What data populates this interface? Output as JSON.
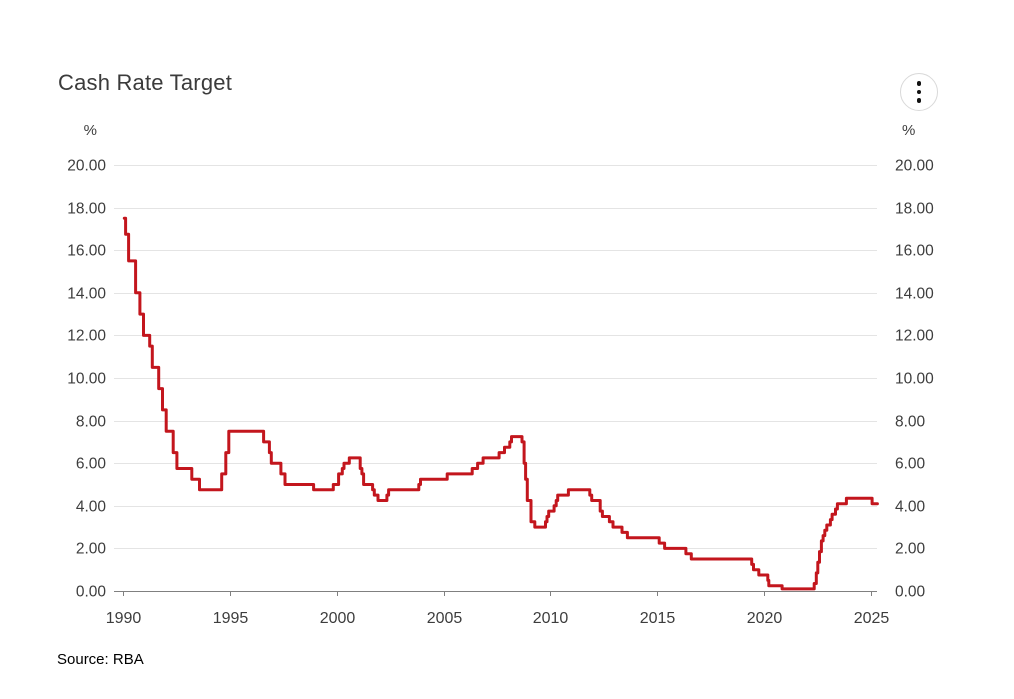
{
  "header": {
    "title": "Cash Rate Target",
    "menu_icon": "kebab-menu-icon"
  },
  "footer": {
    "source": "Source: RBA"
  },
  "chart_data": {
    "type": "line",
    "title": "Cash Rate Target",
    "line_style": "step-after",
    "color": "#c3161d",
    "grid_color": "#e4e4e4",
    "axis_color": "#808080",
    "tick_text_color": "#3d3d3d",
    "xlabel": "",
    "ylabel": "%",
    "unit_label_left": "%",
    "unit_label_right": "%",
    "xlim": [
      1990,
      2025.5
    ],
    "ylim": [
      0,
      20
    ],
    "x_ticks": [
      1990,
      1995,
      2000,
      2005,
      2010,
      2015,
      2020,
      2025
    ],
    "y_ticks": [
      0,
      2,
      4,
      6,
      8,
      10,
      12,
      14,
      16,
      18,
      20
    ],
    "y_tick_labels": [
      "0.00",
      "2.00",
      "4.00",
      "6.00",
      "8.00",
      "10.00",
      "12.00",
      "14.00",
      "16.00",
      "18.00",
      "20.00"
    ],
    "legend": "none",
    "source": "Source: RBA",
    "series": [
      {
        "name": "Cash Rate Target",
        "points": [
          [
            1990.06,
            17.5
          ],
          [
            1990.12,
            16.75
          ],
          [
            1990.26,
            15.5
          ],
          [
            1990.59,
            14.0
          ],
          [
            1990.79,
            13.0
          ],
          [
            1990.96,
            12.0
          ],
          [
            1991.25,
            11.5
          ],
          [
            1991.37,
            10.5
          ],
          [
            1991.67,
            9.5
          ],
          [
            1991.85,
            8.5
          ],
          [
            1992.02,
            7.5
          ],
          [
            1992.35,
            6.5
          ],
          [
            1992.52,
            5.75
          ],
          [
            1993.22,
            5.25
          ],
          [
            1993.58,
            4.75
          ],
          [
            1994.62,
            5.5
          ],
          [
            1994.81,
            6.5
          ],
          [
            1994.95,
            7.5
          ],
          [
            1996.58,
            7.0
          ],
          [
            1996.85,
            6.5
          ],
          [
            1996.94,
            6.0
          ],
          [
            1997.39,
            5.5
          ],
          [
            1997.58,
            5.0
          ],
          [
            1998.92,
            4.75
          ],
          [
            1999.84,
            5.0
          ],
          [
            2000.09,
            5.5
          ],
          [
            2000.26,
            5.75
          ],
          [
            2000.34,
            6.0
          ],
          [
            2000.59,
            6.25
          ],
          [
            2001.1,
            5.75
          ],
          [
            2001.18,
            5.5
          ],
          [
            2001.26,
            5.0
          ],
          [
            2001.68,
            4.75
          ],
          [
            2001.76,
            4.5
          ],
          [
            2001.93,
            4.25
          ],
          [
            2002.35,
            4.5
          ],
          [
            2002.43,
            4.75
          ],
          [
            2003.84,
            5.0
          ],
          [
            2003.92,
            5.25
          ],
          [
            2005.17,
            5.5
          ],
          [
            2006.34,
            5.75
          ],
          [
            2006.59,
            6.0
          ],
          [
            2006.85,
            6.25
          ],
          [
            2007.6,
            6.5
          ],
          [
            2007.85,
            6.75
          ],
          [
            2008.1,
            7.0
          ],
          [
            2008.18,
            7.25
          ],
          [
            2008.67,
            7.0
          ],
          [
            2008.77,
            6.0
          ],
          [
            2008.84,
            5.25
          ],
          [
            2008.92,
            4.25
          ],
          [
            2009.09,
            3.25
          ],
          [
            2009.27,
            3.0
          ],
          [
            2009.77,
            3.25
          ],
          [
            2009.84,
            3.5
          ],
          [
            2009.92,
            3.75
          ],
          [
            2010.17,
            4.0
          ],
          [
            2010.27,
            4.25
          ],
          [
            2010.34,
            4.5
          ],
          [
            2010.84,
            4.75
          ],
          [
            2011.84,
            4.5
          ],
          [
            2011.93,
            4.25
          ],
          [
            2012.33,
            3.75
          ],
          [
            2012.43,
            3.5
          ],
          [
            2012.76,
            3.25
          ],
          [
            2012.93,
            3.0
          ],
          [
            2013.35,
            2.75
          ],
          [
            2013.6,
            2.5
          ],
          [
            2015.09,
            2.25
          ],
          [
            2015.34,
            2.0
          ],
          [
            2016.34,
            1.75
          ],
          [
            2016.59,
            1.5
          ],
          [
            2019.42,
            1.25
          ],
          [
            2019.5,
            1.0
          ],
          [
            2019.75,
            0.75
          ],
          [
            2020.17,
            0.5
          ],
          [
            2020.22,
            0.25
          ],
          [
            2020.84,
            0.1
          ],
          [
            2022.34,
            0.35
          ],
          [
            2022.44,
            0.85
          ],
          [
            2022.51,
            1.35
          ],
          [
            2022.59,
            1.85
          ],
          [
            2022.68,
            2.35
          ],
          [
            2022.76,
            2.6
          ],
          [
            2022.84,
            2.85
          ],
          [
            2022.93,
            3.1
          ],
          [
            2023.1,
            3.35
          ],
          [
            2023.18,
            3.6
          ],
          [
            2023.34,
            3.85
          ],
          [
            2023.43,
            4.1
          ],
          [
            2023.85,
            4.35
          ],
          [
            2025.05,
            4.1
          ],
          [
            2025.3,
            4.1
          ]
        ]
      }
    ]
  }
}
